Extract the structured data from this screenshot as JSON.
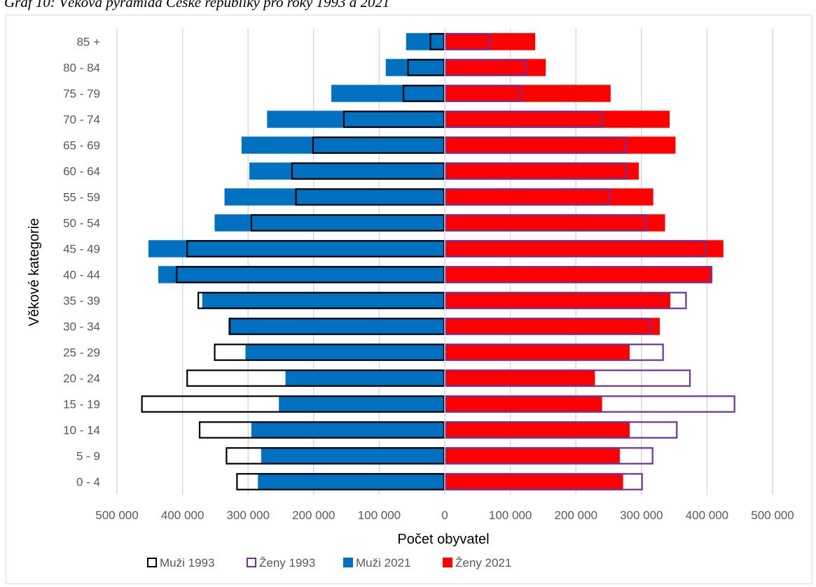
{
  "title": "Graf 10: Věková pyramida České republiky pro roky 1993 a 2021",
  "chart_data": {
    "type": "bar",
    "orientation": "horizontal",
    "layout": "population-pyramid",
    "title": "Graf 10: Věková pyramida České republiky pro roky 1993 a 2021",
    "xlabel": "Počet obyvatel",
    "ylabel": "Věkové kategorie",
    "xlim": [
      -500000,
      500000
    ],
    "x_ticks": [
      -500000,
      -400000,
      -300000,
      -200000,
      -100000,
      0,
      100000,
      200000,
      300000,
      400000,
      500000
    ],
    "x_tick_labels": [
      "500 000",
      "400 000",
      "300 000",
      "200 000",
      "100 000",
      "0",
      "100 000",
      "200 000",
      "300 000",
      "400 000",
      "500 000"
    ],
    "grid": true,
    "legend_position": "bottom",
    "categories": [
      "0 - 4",
      "5 - 9",
      "10 - 14",
      "15 - 19",
      "20 - 24",
      "25 - 29",
      "30 - 34",
      "35 - 39",
      "40 - 44",
      "45 - 49",
      "50 - 54",
      "55 - 59",
      "60 - 64",
      "65 - 69",
      "70 - 74",
      "75 - 79",
      "80 - 84",
      "85 +"
    ],
    "series": [
      {
        "name": "Muži 2021",
        "side": "left",
        "style": "filled",
        "color": "#0070c0",
        "values": [
          285000,
          280000,
          295000,
          253000,
          243000,
          304000,
          330000,
          370000,
          437000,
          452000,
          351000,
          336000,
          298000,
          310000,
          271000,
          173000,
          90000,
          59000
        ]
      },
      {
        "name": "Ženy 2021",
        "side": "right",
        "style": "filled",
        "color": "#ff0000",
        "values": [
          272000,
          267000,
          282000,
          240000,
          229000,
          282000,
          328000,
          344000,
          408000,
          425000,
          336000,
          318000,
          296000,
          352000,
          343000,
          253000,
          154000,
          138000
        ]
      },
      {
        "name": "Muži 1993",
        "side": "left",
        "style": "outline",
        "color": "#000000",
        "values": [
          318000,
          334000,
          375000,
          463000,
          394000,
          352000,
          329000,
          377000,
          410000,
          394000,
          296000,
          228000,
          234000,
          202000,
          155000,
          64000,
          57000,
          23000
        ]
      },
      {
        "name": "Ženy 1993",
        "side": "right",
        "style": "outline",
        "color": "#7030a0",
        "values": [
          302000,
          318000,
          355000,
          443000,
          375000,
          334000,
          315000,
          369000,
          407000,
          399000,
          308000,
          252000,
          278000,
          277000,
          241000,
          117000,
          125000,
          70000
        ]
      }
    ],
    "legend_order": [
      "Muži 1993",
      "Ženy 1993",
      "Muži 2021",
      "Ženy 2021"
    ]
  }
}
